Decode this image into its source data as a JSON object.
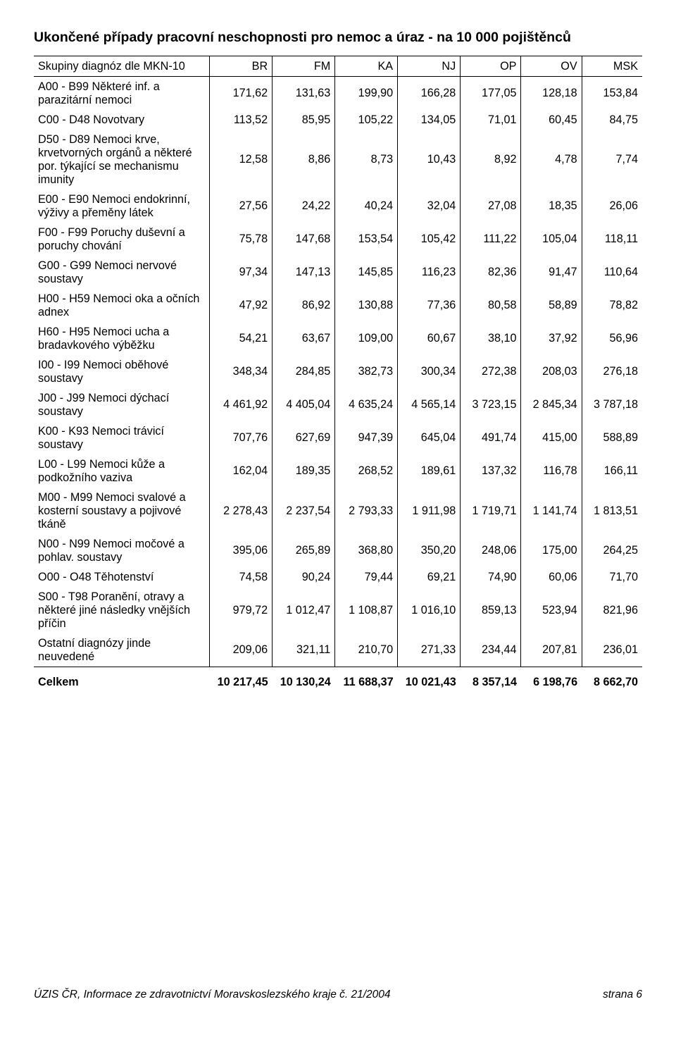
{
  "title": "Ukončené případy pracovní neschopnosti pro nemoc a úraz - na 10 000 pojištěnců",
  "table": {
    "header_label": "Skupiny diagnóz dle MKN-10",
    "columns": [
      "BR",
      "FM",
      "KA",
      "NJ",
      "OP",
      "OV",
      "MSK"
    ],
    "rows": [
      {
        "label": "A00 - B99 Některé inf. a parazitární nemoci",
        "vals": [
          "171,62",
          "131,63",
          "199,90",
          "166,28",
          "177,05",
          "128,18",
          "153,84"
        ]
      },
      {
        "label": "C00 - D48 Novotvary",
        "vals": [
          "113,52",
          "85,95",
          "105,22",
          "134,05",
          "71,01",
          "60,45",
          "84,75"
        ]
      },
      {
        "label": "D50 - D89 Nemoci krve, krvetvorných orgánů a některé por. týkající se mechanismu imunity",
        "vals": [
          "12,58",
          "8,86",
          "8,73",
          "10,43",
          "8,92",
          "4,78",
          "7,74"
        ]
      },
      {
        "label": "E00 - E90 Nemoci endokrinní, výživy a přeměny látek",
        "vals": [
          "27,56",
          "24,22",
          "40,24",
          "32,04",
          "27,08",
          "18,35",
          "26,06"
        ]
      },
      {
        "label": "F00 - F99 Poruchy duševní a poruchy chování",
        "vals": [
          "75,78",
          "147,68",
          "153,54",
          "105,42",
          "111,22",
          "105,04",
          "118,11"
        ]
      },
      {
        "label": "G00 - G99 Nemoci nervové soustavy",
        "vals": [
          "97,34",
          "147,13",
          "145,85",
          "116,23",
          "82,36",
          "91,47",
          "110,64"
        ]
      },
      {
        "label": "H00 - H59 Nemoci oka a očních adnex",
        "vals": [
          "47,92",
          "86,92",
          "130,88",
          "77,36",
          "80,58",
          "58,89",
          "78,82"
        ]
      },
      {
        "label": "H60 - H95 Nemoci ucha a bradavkového výběžku",
        "vals": [
          "54,21",
          "63,67",
          "109,00",
          "60,67",
          "38,10",
          "37,92",
          "56,96"
        ]
      },
      {
        "label": "I00 - I99 Nemoci oběhové soustavy",
        "vals": [
          "348,34",
          "284,85",
          "382,73",
          "300,34",
          "272,38",
          "208,03",
          "276,18"
        ]
      },
      {
        "label": "J00 - J99 Nemoci dýchací soustavy",
        "vals": [
          "4 461,92",
          "4 405,04",
          "4 635,24",
          "4 565,14",
          "3 723,15",
          "2 845,34",
          "3 787,18"
        ]
      },
      {
        "label": "K00 - K93 Nemoci trávicí soustavy",
        "vals": [
          "707,76",
          "627,69",
          "947,39",
          "645,04",
          "491,74",
          "415,00",
          "588,89"
        ]
      },
      {
        "label": "L00 - L99 Nemoci kůže a podkožního vaziva",
        "vals": [
          "162,04",
          "189,35",
          "268,52",
          "189,61",
          "137,32",
          "116,78",
          "166,11"
        ]
      },
      {
        "label": "M00 - M99 Nemoci svalové a kosterní soustavy a pojivové tkáně",
        "vals": [
          "2 278,43",
          "2 237,54",
          "2 793,33",
          "1 911,98",
          "1 719,71",
          "1 141,74",
          "1 813,51"
        ]
      },
      {
        "label": "N00 - N99 Nemoci močové a pohlav. soustavy",
        "vals": [
          "395,06",
          "265,89",
          "368,80",
          "350,20",
          "248,06",
          "175,00",
          "264,25"
        ]
      },
      {
        "label": "O00 - O48 Těhotenství",
        "vals": [
          "74,58",
          "90,24",
          "79,44",
          "69,21",
          "74,90",
          "60,06",
          "71,70"
        ]
      },
      {
        "label": "S00 - T98 Poranění, otravy a některé jiné následky vnějších příčin",
        "vals": [
          "979,72",
          "1 012,47",
          "1 108,87",
          "1 016,10",
          "859,13",
          "523,94",
          "821,96"
        ]
      },
      {
        "label": "Ostatní diagnózy jinde neuvedené",
        "vals": [
          "209,06",
          "321,11",
          "210,70",
          "271,33",
          "234,44",
          "207,81",
          "236,01"
        ]
      }
    ],
    "total": {
      "label": "Celkem",
      "vals": [
        "10 217,45",
        "10 130,24",
        "11 688,37",
        "10 021,43",
        "8 357,14",
        "6 198,76",
        "8 662,70"
      ]
    }
  },
  "footer": {
    "left": "ÚZIS ČR, Informace ze zdravotnictví Moravskoslezského kraje č. 21/2004",
    "right": "strana 6"
  }
}
